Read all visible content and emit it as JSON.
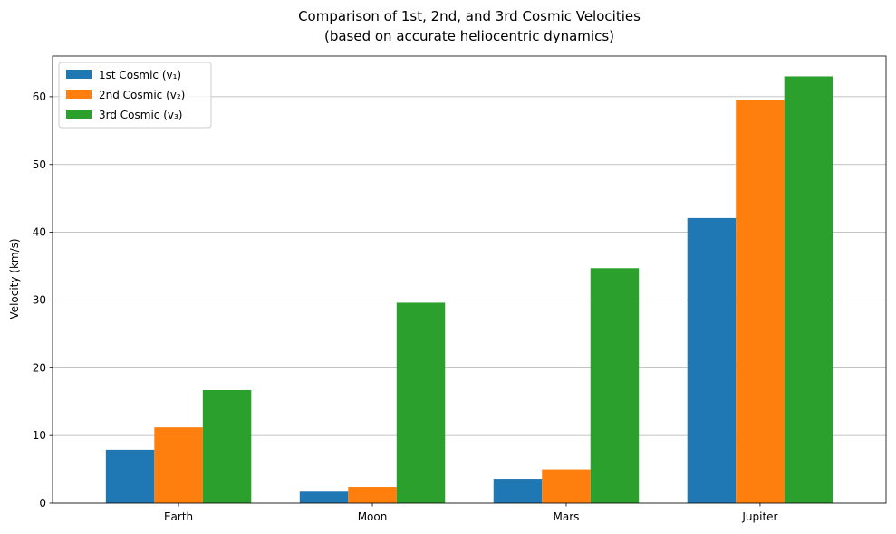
{
  "chart_data": {
    "type": "bar",
    "title": "Comparison of 1st, 2nd, and 3rd Cosmic Velocities",
    "subtitle": "(based on accurate heliocentric dynamics)",
    "xlabel": "",
    "ylabel": "Velocity (km/s)",
    "categories": [
      "Earth",
      "Moon",
      "Mars",
      "Jupiter"
    ],
    "ylim": [
      0,
      66
    ],
    "yticks": [
      0,
      10,
      20,
      30,
      40,
      50,
      60
    ],
    "grid": "y",
    "legend_position": "top-left",
    "series": [
      {
        "name": "1st Cosmic (v₁)",
        "color": "#1f77b4",
        "values": [
          7.9,
          1.7,
          3.6,
          42.1
        ]
      },
      {
        "name": "2nd Cosmic (v₂)",
        "color": "#ff7f0e",
        "values": [
          11.2,
          2.4,
          5.0,
          59.5
        ]
      },
      {
        "name": "3rd Cosmic (v₃)",
        "color": "#2ca02c",
        "values": [
          16.7,
          29.6,
          34.7,
          63.0
        ]
      }
    ]
  }
}
